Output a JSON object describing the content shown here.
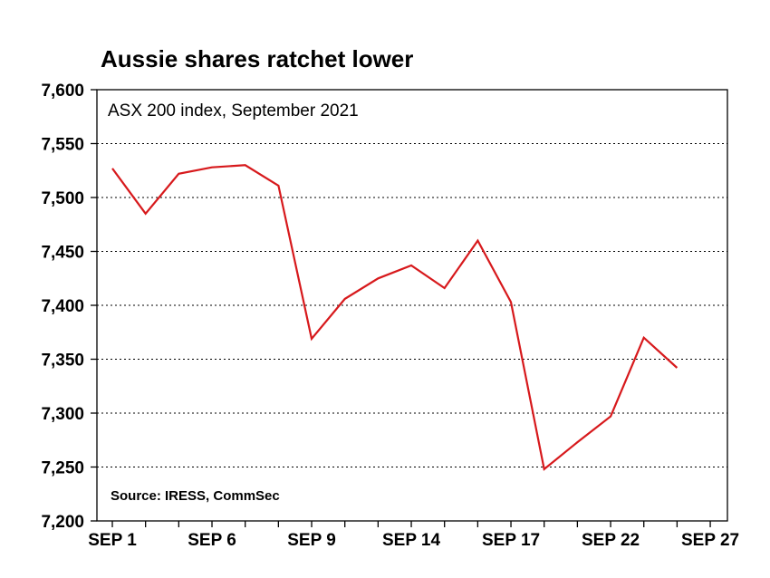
{
  "chart_data": {
    "type": "line",
    "title": "Aussie shares ratchet lower",
    "subtitle": "ASX 200 index, September 2021",
    "source": "Source: IRESS, CommSec",
    "ylim": [
      7200,
      7600
    ],
    "yticks": [
      7200,
      7250,
      7300,
      7350,
      7400,
      7450,
      7500,
      7550,
      7600
    ],
    "ytick_labels": [
      "7,200",
      "7,250",
      "7,300",
      "7,350",
      "7,400",
      "7,450",
      "7,500",
      "7,550",
      "7,600"
    ],
    "x_tick_labels": [
      {
        "label": "SEP 1",
        "index": 0
      },
      {
        "label": "SEP 6",
        "index": 3
      },
      {
        "label": "SEP 9",
        "index": 6
      },
      {
        "label": "SEP 14",
        "index": 9
      },
      {
        "label": "SEP 17",
        "index": 12
      },
      {
        "label": "SEP 22",
        "index": 15
      },
      {
        "label": "SEP 27",
        "index": 18
      }
    ],
    "x_count": 19,
    "grid": true,
    "series": [
      {
        "color": "#d7191c",
        "values": [
          7527,
          7485,
          7522,
          7528,
          7530,
          7511,
          7369,
          7406,
          7425,
          7437,
          7416,
          7460,
          7403,
          7248,
          7273,
          7297,
          7370,
          7342
        ]
      }
    ]
  }
}
